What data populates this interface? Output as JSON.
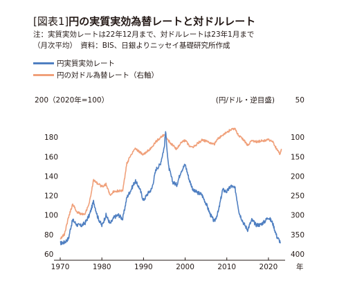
{
  "header": {
    "title_bracket": "[図表1]",
    "title_text": "円の実質実効為替レートと対ドルレート",
    "note1": "注：実質実効レートは22年12月まで、対ドルレートは23年1月まで",
    "note2": "（月次平均）　資料：BIS、日銀よりニッセイ基礎研究所作成"
  },
  "legend": [
    {
      "label": "円実質実効レート",
      "color": "#4f7fc1"
    },
    {
      "label": "円の対ドル為替レート（右軸）",
      "color": "#f0a07a"
    }
  ],
  "chart_data": {
    "type": "line",
    "y_left_title": "200（2020年=100）",
    "y_right_title": "(円/ドル・逆目盛)",
    "x_unit": "年",
    "x_ticks": [
      "1970",
      "1980",
      "1990",
      "2000",
      "2010",
      "2020"
    ],
    "y_left_ticks": [
      "200",
      "180",
      "160",
      "140",
      "120",
      "100",
      "80",
      "60"
    ],
    "y_right_ticks": [
      "50",
      "100",
      "150",
      "200",
      "250",
      "300",
      "350",
      "400"
    ],
    "x_range": [
      1968.5,
      2024
    ],
    "y_left_range": [
      60,
      200
    ],
    "y_right_range": [
      50,
      400
    ],
    "y_right_inverted": true,
    "series": [
      {
        "name": "円実質実効レート",
        "axis": "left",
        "color": "#4f7fc1",
        "points": [
          [
            1970,
            71
          ],
          [
            1971,
            72
          ],
          [
            1972,
            76
          ],
          [
            1972.5,
            87
          ],
          [
            1973,
            95
          ],
          [
            1974,
            90
          ],
          [
            1975,
            89
          ],
          [
            1976,
            92
          ],
          [
            1977,
            100
          ],
          [
            1978,
            114
          ],
          [
            1979,
            98
          ],
          [
            1980,
            89
          ],
          [
            1981,
            100
          ],
          [
            1982,
            91
          ],
          [
            1983,
            98
          ],
          [
            1984,
            100
          ],
          [
            1985,
            96
          ],
          [
            1986,
            118
          ],
          [
            1987,
            126
          ],
          [
            1988,
            135
          ],
          [
            1989,
            128
          ],
          [
            1990,
            115
          ],
          [
            1991,
            122
          ],
          [
            1992,
            127
          ],
          [
            1993,
            147
          ],
          [
            1994,
            152
          ],
          [
            1995,
            170
          ],
          [
            1995.3,
            186
          ],
          [
            1996,
            150
          ],
          [
            1997,
            134
          ],
          [
            1998,
            131
          ],
          [
            1999,
            145
          ],
          [
            2000,
            152
          ],
          [
            2001,
            136
          ],
          [
            2002,
            125
          ],
          [
            2003,
            123
          ],
          [
            2004,
            121
          ],
          [
            2005,
            112
          ],
          [
            2006,
            101
          ],
          [
            2007,
            93
          ],
          [
            2008,
            104
          ],
          [
            2009,
            126
          ],
          [
            2010,
            124
          ],
          [
            2011,
            130
          ],
          [
            2012,
            127
          ],
          [
            2013,
            102
          ],
          [
            2014,
            92
          ],
          [
            2015,
            85
          ],
          [
            2016,
            95
          ],
          [
            2017,
            90
          ],
          [
            2018,
            90
          ],
          [
            2019,
            93
          ],
          [
            2020,
            98
          ],
          [
            2021,
            92
          ],
          [
            2022,
            78
          ],
          [
            2022.9,
            72
          ]
        ]
      },
      {
        "name": "円の対ドル為替レート（右軸）",
        "axis": "right",
        "color": "#f0a07a",
        "points": [
          [
            1970,
            360
          ],
          [
            1971,
            350
          ],
          [
            1972,
            305
          ],
          [
            1973,
            272
          ],
          [
            1974,
            292
          ],
          [
            1975,
            297
          ],
          [
            1976,
            296
          ],
          [
            1977,
            268
          ],
          [
            1978,
            210
          ],
          [
            1979,
            219
          ],
          [
            1980,
            227
          ],
          [
            1981,
            221
          ],
          [
            1982,
            249
          ],
          [
            1983,
            238
          ],
          [
            1984,
            238
          ],
          [
            1985,
            238
          ],
          [
            1986,
            168
          ],
          [
            1987,
            145
          ],
          [
            1988,
            128
          ],
          [
            1989,
            138
          ],
          [
            1990,
            145
          ],
          [
            1991,
            135
          ],
          [
            1992,
            127
          ],
          [
            1993,
            111
          ],
          [
            1994,
            102
          ],
          [
            1995,
            94
          ],
          [
            1996,
            109
          ],
          [
            1997,
            121
          ],
          [
            1998,
            131
          ],
          [
            1999,
            114
          ],
          [
            2000,
            108
          ],
          [
            2001,
            122
          ],
          [
            2002,
            125
          ],
          [
            2003,
            116
          ],
          [
            2004,
            108
          ],
          [
            2005,
            110
          ],
          [
            2006,
            116
          ],
          [
            2007,
            118
          ],
          [
            2008,
            103
          ],
          [
            2009,
            94
          ],
          [
            2010,
            88
          ],
          [
            2011,
            80
          ],
          [
            2012,
            80
          ],
          [
            2013,
            98
          ],
          [
            2014,
            106
          ],
          [
            2015,
            121
          ],
          [
            2016,
            109
          ],
          [
            2017,
            112
          ],
          [
            2018,
            110
          ],
          [
            2019,
            109
          ],
          [
            2020,
            107
          ],
          [
            2021,
            110
          ],
          [
            2022,
            132
          ],
          [
            2022.8,
            145
          ],
          [
            2023.1,
            130
          ]
        ]
      }
    ]
  }
}
